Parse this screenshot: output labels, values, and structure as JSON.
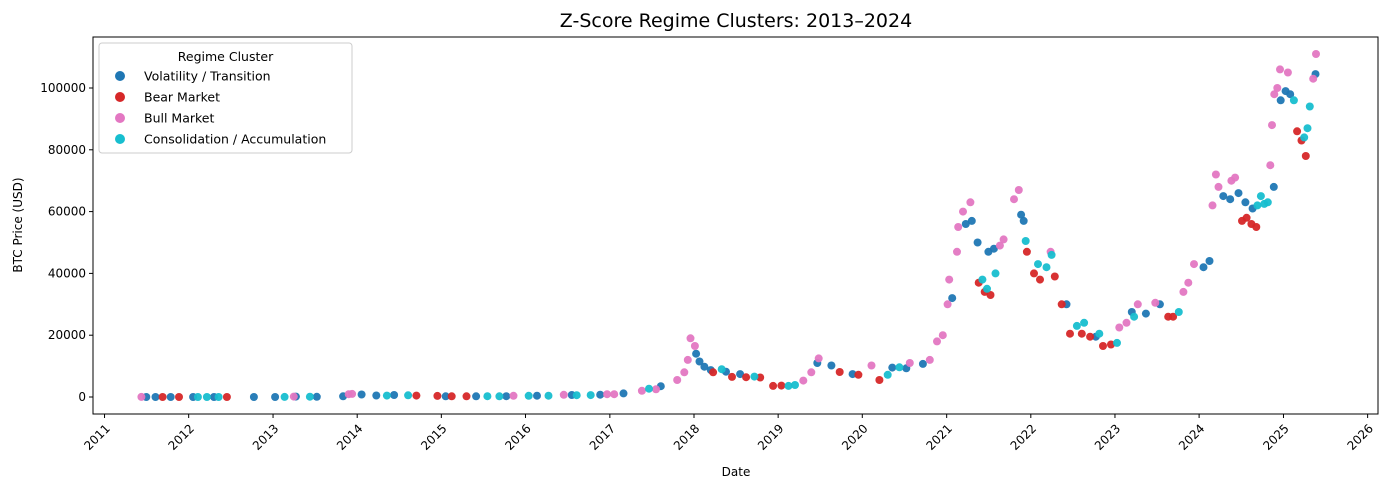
{
  "chart_data": {
    "type": "scatter",
    "title": "Z-Score Regime Clusters: 2013–2024",
    "xlabel": "Date",
    "ylabel": "BTC Price (USD)",
    "xlim": [
      "2010-11-12",
      "2026-02-15"
    ],
    "ylim": [
      -5500,
      116500
    ],
    "x_ticks": [
      "2011",
      "2012",
      "2013",
      "2014",
      "2015",
      "2016",
      "2017",
      "2018",
      "2019",
      "2020",
      "2021",
      "2022",
      "2023",
      "2024",
      "2025",
      "2026"
    ],
    "y_ticks": [
      0,
      20000,
      40000,
      60000,
      80000,
      100000
    ],
    "y_tick_labels": [
      "0",
      "20000",
      "40000",
      "60000",
      "80000",
      "100000"
    ],
    "grid": false,
    "legend": {
      "title": "Regime Cluster",
      "placement": "upper-left"
    },
    "series": [
      {
        "name": "Volatility / Transition",
        "color": "#1f77b4",
        "points": [
          [
            "2011-07-01",
            15
          ],
          [
            "2011-08-10",
            10
          ],
          [
            "2011-10-15",
            4
          ],
          [
            "2012-01-20",
            6
          ],
          [
            "2012-04-20",
            5
          ],
          [
            "2012-10-10",
            11
          ],
          [
            "2013-01-10",
            15
          ],
          [
            "2013-04-10",
            120
          ],
          [
            "2013-07-10",
            80
          ],
          [
            "2013-11-01",
            220
          ],
          [
            "2014-01-20",
            820
          ],
          [
            "2014-03-25",
            500
          ],
          [
            "2014-06-10",
            650
          ],
          [
            "2015-01-20",
            220
          ],
          [
            "2015-06-01",
            230
          ],
          [
            "2015-10-10",
            260
          ],
          [
            "2016-02-20",
            430
          ],
          [
            "2016-07-20",
            660
          ],
          [
            "2016-11-20",
            740
          ],
          [
            "2017-03-01",
            1180
          ],
          [
            "2017-08-10",
            3500
          ],
          [
            "2018-01-10",
            14000
          ],
          [
            "2018-01-25",
            11500
          ],
          [
            "2018-02-15",
            9800
          ],
          [
            "2018-03-15",
            8700
          ],
          [
            "2018-05-20",
            8200
          ],
          [
            "2018-07-20",
            7400
          ],
          [
            "2019-06-20",
            11000
          ],
          [
            "2019-08-20",
            10200
          ],
          [
            "2019-11-20",
            7400
          ],
          [
            "2020-05-10",
            9500
          ],
          [
            "2020-07-10",
            9300
          ],
          [
            "2020-09-20",
            10700
          ],
          [
            "2021-01-25",
            32000
          ],
          [
            "2021-03-25",
            56000
          ],
          [
            "2021-04-20",
            57000
          ],
          [
            "2021-05-15",
            50000
          ],
          [
            "2021-07-01",
            47000
          ],
          [
            "2021-07-25",
            48000
          ],
          [
            "2021-11-20",
            59000
          ],
          [
            "2021-12-01",
            57000
          ],
          [
            "2022-06-05",
            30000
          ],
          [
            "2022-10-10",
            19500
          ],
          [
            "2023-03-15",
            27500
          ],
          [
            "2023-05-15",
            27000
          ],
          [
            "2023-07-15",
            30000
          ],
          [
            "2024-01-20",
            42000
          ],
          [
            "2024-02-15",
            44000
          ],
          [
            "2024-04-15",
            65000
          ],
          [
            "2024-05-15",
            64000
          ],
          [
            "2024-06-20",
            66000
          ],
          [
            "2024-07-20",
            63000
          ],
          [
            "2024-08-20",
            61000
          ],
          [
            "2024-11-20",
            68000
          ],
          [
            "2024-12-20",
            96000
          ],
          [
            "2025-01-10",
            99000
          ],
          [
            "2025-01-30",
            98000
          ],
          [
            "2025-05-20",
            104500
          ]
        ]
      },
      {
        "name": "Bear Market",
        "color": "#d62728",
        "points": [
          [
            "2011-09-10",
            6
          ],
          [
            "2011-11-20",
            3
          ],
          [
            "2012-06-15",
            6
          ],
          [
            "2014-09-15",
            450
          ],
          [
            "2014-12-15",
            350
          ],
          [
            "2015-02-15",
            240
          ],
          [
            "2015-04-20",
            230
          ],
          [
            "2018-03-25",
            8000
          ],
          [
            "2018-06-15",
            6500
          ],
          [
            "2018-08-15",
            6400
          ],
          [
            "2018-10-15",
            6300
          ],
          [
            "2018-12-10",
            3600
          ],
          [
            "2019-01-15",
            3700
          ],
          [
            "2019-09-25",
            8100
          ],
          [
            "2019-12-15",
            7200
          ],
          [
            "2020-03-15",
            5500
          ],
          [
            "2021-05-20",
            37000
          ],
          [
            "2021-06-15",
            34000
          ],
          [
            "2021-07-10",
            33000
          ],
          [
            "2021-12-15",
            47000
          ],
          [
            "2022-01-15",
            40000
          ],
          [
            "2022-02-10",
            38000
          ],
          [
            "2022-04-15",
            39000
          ],
          [
            "2022-05-15",
            30000
          ],
          [
            "2022-06-20",
            20500
          ],
          [
            "2022-08-10",
            20500
          ],
          [
            "2022-09-15",
            19500
          ],
          [
            "2022-11-10",
            16500
          ],
          [
            "2022-12-15",
            17000
          ],
          [
            "2023-08-20",
            26000
          ],
          [
            "2023-09-10",
            26000
          ],
          [
            "2024-07-05",
            57000
          ],
          [
            "2024-07-25",
            58000
          ],
          [
            "2024-08-15",
            56000
          ],
          [
            "2024-09-05",
            55000
          ],
          [
            "2025-03-01",
            86000
          ],
          [
            "2025-03-20",
            83000
          ],
          [
            "2025-04-08",
            78000
          ]
        ]
      },
      {
        "name": "Bull Market",
        "color": "#e377c2",
        "points": [
          [
            "2011-06-10",
            20
          ],
          [
            "2013-04-01",
            140
          ],
          [
            "2013-11-25",
            900
          ],
          [
            "2013-12-10",
            1000
          ],
          [
            "2015-11-10",
            380
          ],
          [
            "2016-06-15",
            700
          ],
          [
            "2016-12-20",
            900
          ],
          [
            "2017-01-20",
            900
          ],
          [
            "2017-05-20",
            2000
          ],
          [
            "2017-07-20",
            2500
          ],
          [
            "2017-10-20",
            5500
          ],
          [
            "2017-11-20",
            8000
          ],
          [
            "2017-12-05",
            12000
          ],
          [
            "2017-12-17",
            19000
          ],
          [
            "2018-01-05",
            16500
          ],
          [
            "2019-04-20",
            5300
          ],
          [
            "2019-05-25",
            8000
          ],
          [
            "2019-06-26",
            12500
          ],
          [
            "2020-02-10",
            10200
          ],
          [
            "2020-07-25",
            11000
          ],
          [
            "2020-10-20",
            12000
          ],
          [
            "2020-11-20",
            18000
          ],
          [
            "2020-12-15",
            20000
          ],
          [
            "2021-01-05",
            30000
          ],
          [
            "2021-01-12",
            38000
          ],
          [
            "2021-02-15",
            47000
          ],
          [
            "2021-02-20",
            55000
          ],
          [
            "2021-03-13",
            60000
          ],
          [
            "2021-04-14",
            63000
          ],
          [
            "2021-08-20",
            49000
          ],
          [
            "2021-09-05",
            51000
          ],
          [
            "2021-10-20",
            64000
          ],
          [
            "2021-11-10",
            67000
          ],
          [
            "2022-03-28",
            47000
          ],
          [
            "2023-01-20",
            22500
          ],
          [
            "2023-02-20",
            24000
          ],
          [
            "2023-04-10",
            30000
          ],
          [
            "2023-06-25",
            30500
          ],
          [
            "2023-10-25",
            34000
          ],
          [
            "2023-11-15",
            37000
          ],
          [
            "2023-12-10",
            43000
          ],
          [
            "2024-02-28",
            62000
          ],
          [
            "2024-03-14",
            72000
          ],
          [
            "2024-03-25",
            68000
          ],
          [
            "2024-05-20",
            70000
          ],
          [
            "2024-06-05",
            71000
          ],
          [
            "2024-11-05",
            75000
          ],
          [
            "2024-11-12",
            88000
          ],
          [
            "2024-11-22",
            98000
          ],
          [
            "2024-12-05",
            100000
          ],
          [
            "2024-12-17",
            106000
          ],
          [
            "2025-01-20",
            105000
          ],
          [
            "2025-05-10",
            103000
          ],
          [
            "2025-05-22",
            111000
          ]
        ]
      },
      {
        "name": "Consolidation / Accumulation",
        "color": "#17becf",
        "points": [
          [
            "2012-02-10",
            5
          ],
          [
            "2012-03-20",
            5
          ],
          [
            "2012-05-10",
            5
          ],
          [
            "2013-02-20",
            30
          ],
          [
            "2013-06-10",
            100
          ],
          [
            "2014-05-10",
            470
          ],
          [
            "2014-08-10",
            560
          ],
          [
            "2015-07-20",
            270
          ],
          [
            "2015-09-10",
            235
          ],
          [
            "2016-01-15",
            400
          ],
          [
            "2016-04-10",
            420
          ],
          [
            "2016-08-10",
            580
          ],
          [
            "2016-10-10",
            620
          ],
          [
            "2017-06-20",
            2700
          ],
          [
            "2018-05-01",
            9000
          ],
          [
            "2018-09-20",
            6600
          ],
          [
            "2019-02-15",
            3600
          ],
          [
            "2019-03-15",
            3900
          ],
          [
            "2020-04-20",
            7200
          ],
          [
            "2020-06-10",
            9600
          ],
          [
            "2021-06-05",
            38000
          ],
          [
            "2021-06-25",
            35000
          ],
          [
            "2021-08-01",
            40000
          ],
          [
            "2021-12-10",
            50500
          ],
          [
            "2022-02-01",
            43000
          ],
          [
            "2022-03-10",
            42000
          ],
          [
            "2022-04-01",
            46000
          ],
          [
            "2022-07-20",
            23000
          ],
          [
            "2022-08-20",
            24000
          ],
          [
            "2022-10-25",
            20500
          ],
          [
            "2023-01-10",
            17500
          ],
          [
            "2023-03-25",
            26000
          ],
          [
            "2023-10-05",
            27500
          ],
          [
            "2024-09-10",
            62000
          ],
          [
            "2024-09-25",
            65000
          ],
          [
            "2024-10-10",
            62500
          ],
          [
            "2024-10-25",
            63000
          ],
          [
            "2025-02-15",
            96000
          ],
          [
            "2025-04-01",
            84000
          ],
          [
            "2025-04-15",
            87000
          ],
          [
            "2025-04-25",
            94000
          ]
        ]
      }
    ]
  }
}
